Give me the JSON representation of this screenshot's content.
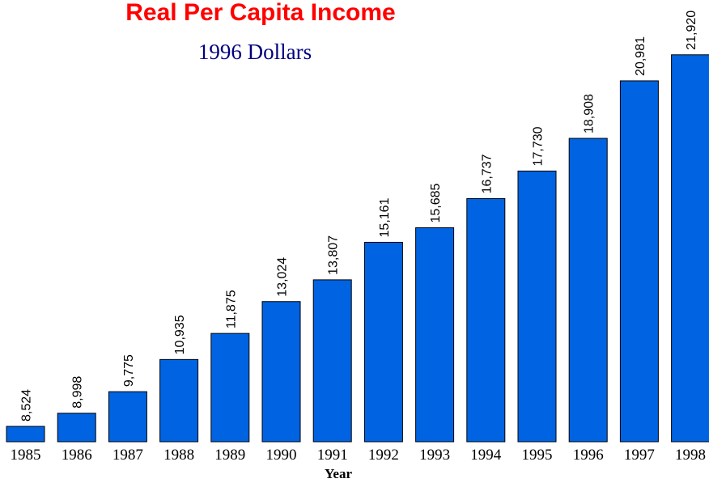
{
  "chart_data": {
    "type": "bar",
    "title": "Real Per Capita Income",
    "subtitle": "1996 Dollars",
    "x_label": "Year",
    "categories": [
      "1985",
      "1986",
      "1987",
      "1988",
      "1989",
      "1990",
      "1991",
      "1992",
      "1993",
      "1994",
      "1995",
      "1996",
      "1997",
      "1998"
    ],
    "values": [
      8524,
      8998,
      9775,
      10935,
      11875,
      13024,
      13807,
      15161,
      15685,
      16737,
      17730,
      18908,
      20981,
      21920
    ],
    "value_labels": [
      "8,524",
      "8,998",
      "9,775",
      "10,935",
      "11,875",
      "13,024",
      "13,807",
      "15,161",
      "15,685",
      "16,737",
      "17,730",
      "18,908",
      "20,981",
      "21,920"
    ],
    "color": "#0063e1",
    "ylim": [
      7970,
      22000
    ]
  }
}
